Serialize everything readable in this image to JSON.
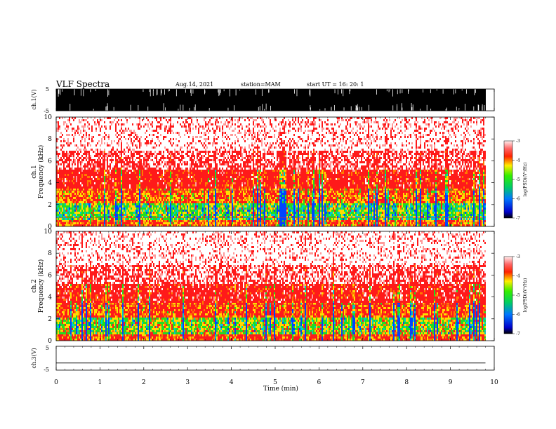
{
  "header": {
    "title": "VLF Spectra",
    "date": "Aug.14, 2021",
    "station": "station=MAM",
    "start": "start UT =   16: 20: 1"
  },
  "chart_data": [
    {
      "type": "line",
      "panel": "ch1 waveform",
      "ylabel": "ch.1(V)",
      "ylim": [
        -5,
        5
      ],
      "yticks": [
        "5",
        "-5"
      ],
      "description_values": "dense black bipolar waveform spanning ±5 V from 0 to ~9.8 min"
    },
    {
      "type": "heatmap",
      "panel": "ch1 spectrogram",
      "ylabel": "ch.1",
      "ylabel2": "Frequency (kHz)",
      "ylim": [
        0,
        10
      ],
      "yticks": [
        "0",
        "2",
        "4",
        "6",
        "8",
        "10"
      ],
      "colorbar": {
        "label": "log(PSD)(V²/Hz)",
        "range": [
          -7,
          -3
        ],
        "ticks": [
          "-3",
          "-4",
          "-5",
          "-6",
          "-7"
        ]
      }
    },
    {
      "type": "heatmap",
      "panel": "ch2 spectrogram",
      "ylabel": "ch.2",
      "ylabel2": "Frequency (kHz)",
      "ylim": [
        0,
        10
      ],
      "yticks": [
        "0",
        "2",
        "4",
        "6",
        "8",
        "10"
      ],
      "colorbar": {
        "label": "log(PSD)(V²/Hz)",
        "range": [
          -7,
          -3
        ],
        "ticks": [
          "-3",
          "-4",
          "-5",
          "-6",
          "-7"
        ]
      }
    },
    {
      "type": "line",
      "panel": "ch3 waveform",
      "ylabel": "ch.3(V)",
      "ylim": [
        -5,
        5
      ],
      "yticks": [
        "5",
        "-5"
      ],
      "x": [
        0,
        9.8
      ],
      "y": [
        -2,
        -2
      ]
    }
  ],
  "xaxis": {
    "xlabel": "Time (min)",
    "xlim": [
      0,
      10
    ],
    "ticks": [
      "0",
      "1",
      "2",
      "3",
      "4",
      "5",
      "6",
      "7",
      "8",
      "9",
      "10"
    ]
  },
  "colors": {
    "white": "#ffffff",
    "red": "#ff1a1a",
    "yellow": "#ffdd00",
    "green": "#22dd22",
    "cyan": "#00cccc",
    "blue": "#0044ff",
    "black": "#000000"
  }
}
